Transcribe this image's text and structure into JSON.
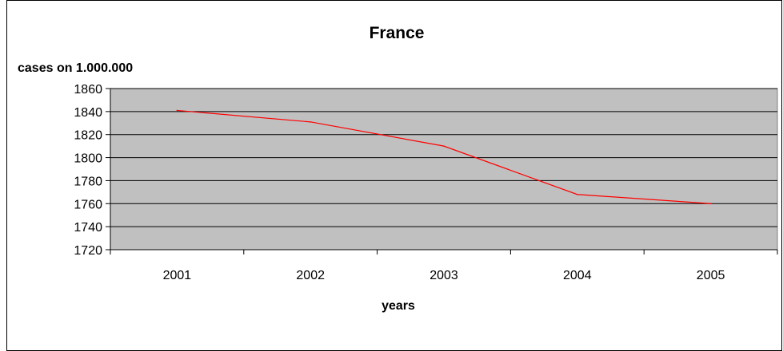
{
  "chart_data": {
    "type": "line",
    "title": "France",
    "ylabel": "cases on 1.000.000",
    "xlabel": "years",
    "categories": [
      "2001",
      "2002",
      "2003",
      "2004",
      "2005"
    ],
    "series": [
      {
        "values": [
          1841,
          1831,
          1810,
          1768,
          1760
        ]
      }
    ],
    "ylim": [
      1720,
      1860
    ],
    "yticks": [
      "1720",
      "1740",
      "1760",
      "1780",
      "1800",
      "1820",
      "1840",
      "1860"
    ],
    "grid": true,
    "colors": {
      "plot_background": "#c0c0c0",
      "line": "#ff0000",
      "gridline": "#000000"
    }
  }
}
